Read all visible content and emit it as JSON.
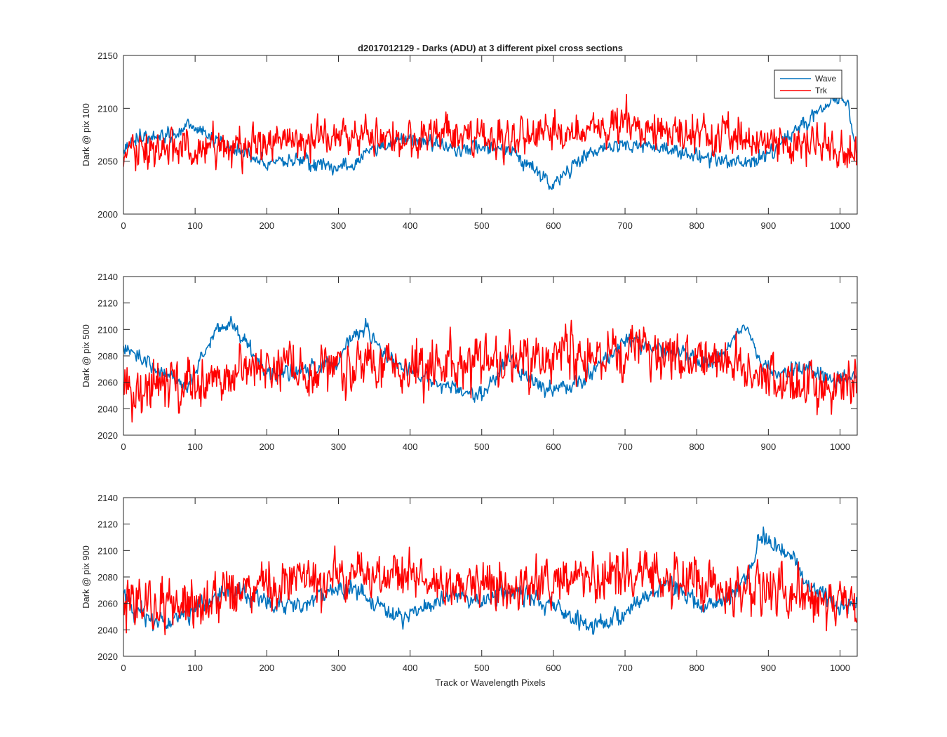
{
  "figure": {
    "title": "d2017012129 - Darks (ADU) at 3 different pixel cross sections",
    "xlabel": "Track or Wavelength Pixels",
    "legend": {
      "placement": "top-right of first panel",
      "entries": [
        {
          "name": "Wave",
          "color": "#0072BD"
        },
        {
          "name": "Trk",
          "color": "#FF0000"
        }
      ]
    }
  },
  "chart_data": [
    {
      "type": "line",
      "title": "d2017012129 - Darks (ADU) at 3 different pixel cross sections",
      "ylabel": "Dark @ pix 100",
      "xlabel": "",
      "xlim": [
        0,
        1024
      ],
      "ylim": [
        2000,
        2150
      ],
      "xticks": [
        0,
        100,
        200,
        300,
        400,
        500,
        600,
        700,
        800,
        900,
        1000
      ],
      "yticks": [
        2000,
        2050,
        2100,
        2150
      ],
      "n_points": 1024,
      "series": [
        {
          "name": "Wave",
          "color": "#0072BD",
          "trend": [
            [
              0,
              2062
            ],
            [
              20,
              2072
            ],
            [
              60,
              2074
            ],
            [
              100,
              2082
            ],
            [
              120,
              2072
            ],
            [
              160,
              2060
            ],
            [
              200,
              2046
            ],
            [
              240,
              2052
            ],
            [
              280,
              2044
            ],
            [
              320,
              2046
            ],
            [
              340,
              2060
            ],
            [
              380,
              2070
            ],
            [
              420,
              2068
            ],
            [
              460,
              2062
            ],
            [
              500,
              2064
            ],
            [
              540,
              2060
            ],
            [
              560,
              2048
            ],
            [
              580,
              2038
            ],
            [
              600,
              2026
            ],
            [
              620,
              2040
            ],
            [
              650,
              2058
            ],
            [
              700,
              2066
            ],
            [
              740,
              2064
            ],
            [
              780,
              2058
            ],
            [
              820,
              2054
            ],
            [
              860,
              2048
            ],
            [
              880,
              2048
            ],
            [
              900,
              2058
            ],
            [
              930,
              2074
            ],
            [
              960,
              2092
            ],
            [
              980,
              2104
            ],
            [
              1000,
              2110
            ],
            [
              1010,
              2106
            ],
            [
              1020,
              2070
            ],
            [
              1024,
              2062
            ]
          ],
          "noise_amplitude": 6
        },
        {
          "name": "Trk",
          "color": "#FF0000",
          "trend": [
            [
              0,
              2060
            ],
            [
              100,
              2060
            ],
            [
              200,
              2068
            ],
            [
              300,
              2072
            ],
            [
              400,
              2074
            ],
            [
              500,
              2072
            ],
            [
              600,
              2074
            ],
            [
              700,
              2082
            ],
            [
              800,
              2076
            ],
            [
              900,
              2068
            ],
            [
              1000,
              2064
            ],
            [
              1024,
              2058
            ]
          ],
          "noise_amplitude": 16
        }
      ]
    },
    {
      "type": "line",
      "title": "",
      "ylabel": "Dark @ pix 500",
      "xlabel": "",
      "xlim": [
        0,
        1024
      ],
      "ylim": [
        2020,
        2140
      ],
      "xticks": [
        0,
        100,
        200,
        300,
        400,
        500,
        600,
        700,
        800,
        900,
        1000
      ],
      "yticks": [
        2020,
        2040,
        2060,
        2080,
        2100,
        2120,
        2140
      ],
      "n_points": 1024,
      "series": [
        {
          "name": "Wave",
          "color": "#0072BD",
          "trend": [
            [
              0,
              2084
            ],
            [
              20,
              2080
            ],
            [
              60,
              2066
            ],
            [
              90,
              2056
            ],
            [
              110,
              2080
            ],
            [
              130,
              2098
            ],
            [
              150,
              2106
            ],
            [
              170,
              2090
            ],
            [
              200,
              2066
            ],
            [
              240,
              2068
            ],
            [
              300,
              2074
            ],
            [
              320,
              2096
            ],
            [
              340,
              2102
            ],
            [
              360,
              2084
            ],
            [
              400,
              2068
            ],
            [
              460,
              2056
            ],
            [
              500,
              2048
            ],
            [
              540,
              2080
            ],
            [
              560,
              2064
            ],
            [
              600,
              2054
            ],
            [
              640,
              2060
            ],
            [
              680,
              2082
            ],
            [
              700,
              2092
            ],
            [
              740,
              2086
            ],
            [
              780,
              2082
            ],
            [
              820,
              2074
            ],
            [
              850,
              2092
            ],
            [
              870,
              2100
            ],
            [
              890,
              2074
            ],
            [
              920,
              2066
            ],
            [
              950,
              2072
            ],
            [
              1000,
              2060
            ],
            [
              1024,
              2066
            ]
          ],
          "noise_amplitude": 5
        },
        {
          "name": "Trk",
          "color": "#FF0000",
          "trend": [
            [
              0,
              2052
            ],
            [
              100,
              2058
            ],
            [
              200,
              2070
            ],
            [
              300,
              2074
            ],
            [
              400,
              2070
            ],
            [
              500,
              2076
            ],
            [
              600,
              2078
            ],
            [
              700,
              2082
            ],
            [
              800,
              2080
            ],
            [
              900,
              2064
            ],
            [
              1000,
              2058
            ],
            [
              1024,
              2060
            ]
          ],
          "noise_amplitude": 16
        }
      ]
    },
    {
      "type": "line",
      "title": "",
      "ylabel": "Dark @ pix 900",
      "xlabel": "Track or Wavelength Pixels",
      "xlim": [
        0,
        1024
      ],
      "ylim": [
        2020,
        2140
      ],
      "xticks": [
        0,
        100,
        200,
        300,
        400,
        500,
        600,
        700,
        800,
        900,
        1000
      ],
      "yticks": [
        2020,
        2040,
        2060,
        2080,
        2100,
        2120,
        2140
      ],
      "n_points": 1024,
      "series": [
        {
          "name": "Wave",
          "color": "#0072BD",
          "trend": [
            [
              0,
              2066
            ],
            [
              40,
              2044
            ],
            [
              80,
              2050
            ],
            [
              120,
              2062
            ],
            [
              160,
              2070
            ],
            [
              200,
              2062
            ],
            [
              240,
              2056
            ],
            [
              300,
              2072
            ],
            [
              340,
              2066
            ],
            [
              380,
              2048
            ],
            [
              420,
              2056
            ],
            [
              460,
              2066
            ],
            [
              500,
              2062
            ],
            [
              540,
              2070
            ],
            [
              600,
              2058
            ],
            [
              640,
              2044
            ],
            [
              680,
              2046
            ],
            [
              720,
              2062
            ],
            [
              760,
              2076
            ],
            [
              800,
              2060
            ],
            [
              840,
              2062
            ],
            [
              870,
              2078
            ],
            [
              890,
              2110
            ],
            [
              910,
              2104
            ],
            [
              940,
              2090
            ],
            [
              960,
              2070
            ],
            [
              1000,
              2058
            ],
            [
              1024,
              2062
            ]
          ],
          "noise_amplitude": 6
        },
        {
          "name": "Trk",
          "color": "#FF0000",
          "trend": [
            [
              0,
              2058
            ],
            [
              100,
              2060
            ],
            [
              200,
              2076
            ],
            [
              300,
              2080
            ],
            [
              400,
              2078
            ],
            [
              500,
              2076
            ],
            [
              600,
              2078
            ],
            [
              700,
              2082
            ],
            [
              800,
              2076
            ],
            [
              900,
              2070
            ],
            [
              1000,
              2062
            ],
            [
              1024,
              2060
            ]
          ],
          "noise_amplitude": 16
        }
      ]
    }
  ]
}
